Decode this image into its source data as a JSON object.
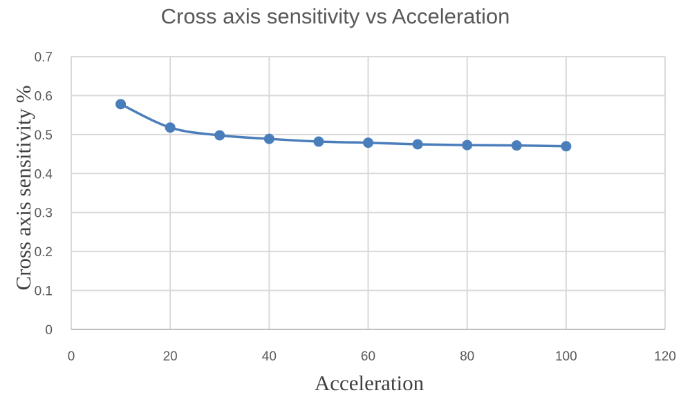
{
  "chart_data": {
    "type": "line",
    "title": "Cross axis sensitivity vs Acceleration",
    "xlabel": "Acceleration",
    "ylabel": "Cross axis sensitivity %",
    "x": [
      10,
      20,
      30,
      40,
      50,
      60,
      70,
      80,
      90,
      100
    ],
    "series": [
      {
        "name": "Cross axis sensitivity",
        "values": [
          0.578,
          0.518,
          0.498,
          0.489,
          0.482,
          0.479,
          0.475,
          0.473,
          0.472,
          0.47
        ],
        "color": "#4a7ebb",
        "smooth": true,
        "markers": "circle"
      }
    ],
    "xlim": [
      0,
      120
    ],
    "ylim": [
      0,
      0.7
    ],
    "x_ticks": [
      "0",
      "20",
      "40",
      "60",
      "80",
      "100",
      "120"
    ],
    "y_ticks": [
      "0",
      "0.1",
      "0.2",
      "0.3",
      "0.4",
      "0.5",
      "0.6",
      "0.7"
    ],
    "grid": true,
    "legend": null
  }
}
